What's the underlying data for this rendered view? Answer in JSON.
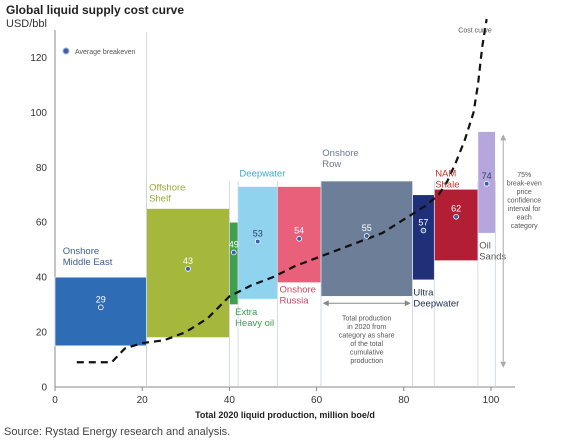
{
  "chart_data": {
    "type": "supply-cost-curve",
    "title": "Global liquid supply cost curve",
    "ylabel": "USD/bbl",
    "xlabel": "Total 2020 liquid production, million boe/d",
    "xlim": [
      0,
      100
    ],
    "ylim": [
      0,
      130
    ],
    "xticks": [
      0,
      20,
      40,
      60,
      80,
      100
    ],
    "yticks": [
      0,
      20,
      40,
      60,
      80,
      100,
      120
    ],
    "legend_breakeven": "Average breakeven",
    "legend_curve": "Cost curve",
    "segments": [
      {
        "name": "Onshore Middle East",
        "x0": 0,
        "x1": 21,
        "low": 15,
        "high": 40,
        "breakeven": 29,
        "breakeven_label": "29",
        "color": "#2e6cb5",
        "label_color": "#3d5f8f"
      },
      {
        "name": "Offshore Shelf",
        "x0": 21,
        "x1": 40,
        "low": 18,
        "high": 65,
        "breakeven": 43,
        "breakeven_label": "43",
        "color": "#a6b83c",
        "label_color": "#9aa93a"
      },
      {
        "name": "Extra Heavy oil",
        "x0": 40,
        "x1": 42,
        "low": 30,
        "high": 60,
        "breakeven": 49,
        "breakeven_label": "49",
        "color": "#3f9e4f",
        "label_color": "#3f9e4f"
      },
      {
        "name": "Deepwater",
        "x0": 42,
        "x1": 51,
        "low": 32,
        "high": 73,
        "breakeven": 53,
        "breakeven_label": "53",
        "color": "#8fd3ef",
        "label_color": "#3aa9d6"
      },
      {
        "name": "Onshore Russia",
        "x0": 51,
        "x1": 61,
        "low": 38,
        "high": 73,
        "breakeven": 54,
        "breakeven_label": "54",
        "color": "#e8607a",
        "label_color": "#d0465f"
      },
      {
        "name": "Onshore Row",
        "x0": 61,
        "x1": 82,
        "low": 33,
        "high": 75,
        "breakeven": 55,
        "breakeven_label": "55",
        "color": "#6c7e98",
        "label_color": "#6b7a92"
      },
      {
        "name": "Ultra Deepwater",
        "x0": 82,
        "x1": 87,
        "low": 39,
        "high": 70,
        "breakeven": 57,
        "breakeven_label": "57",
        "color": "#1f2f7a",
        "label_color": "#1f2f4a"
      },
      {
        "name": "NAM Shale",
        "x0": 87,
        "x1": 97,
        "low": 46,
        "high": 72,
        "breakeven": 62,
        "breakeven_label": "62",
        "color": "#b21f35",
        "label_color": "#c0392b"
      },
      {
        "name": "Oil Sands",
        "x0": 97,
        "x1": 101,
        "low": 56,
        "high": 93,
        "breakeven": 74,
        "breakeven_label": "74",
        "color": "#b7a6dc",
        "label_color": "#555555"
      }
    ],
    "cost_curve": [
      [
        5,
        9
      ],
      [
        13,
        9
      ],
      [
        16,
        14
      ],
      [
        20,
        16
      ],
      [
        25,
        17
      ],
      [
        30,
        20
      ],
      [
        35,
        25
      ],
      [
        40,
        33
      ],
      [
        45,
        37
      ],
      [
        50,
        40
      ],
      [
        55,
        44
      ],
      [
        60,
        47
      ],
      [
        65,
        50
      ],
      [
        70,
        53
      ],
      [
        75,
        56
      ],
      [
        80,
        61
      ],
      [
        85,
        66
      ],
      [
        88,
        70
      ],
      [
        90,
        75
      ],
      [
        92,
        82
      ],
      [
        94,
        90
      ],
      [
        96,
        100
      ],
      [
        97,
        110
      ],
      [
        98,
        124
      ],
      [
        99,
        134
      ]
    ],
    "annotation_width": "Total production in 2020 from category as share of the total cumulative production",
    "annotation_interval": "75% break-even price confidence interval for each category",
    "source": "Source: Rystad Energy research and analysis."
  }
}
